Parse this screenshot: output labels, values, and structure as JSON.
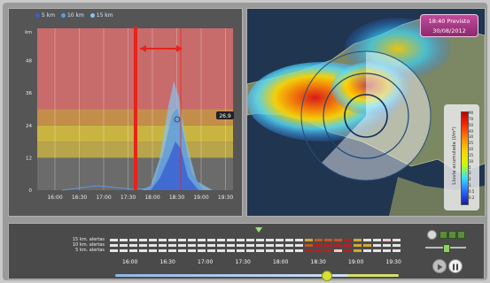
{
  "chart": {
    "legend": [
      {
        "label": "5 km",
        "color": "#3a5fd0"
      },
      {
        "label": "10 km",
        "color": "#5c9ae0"
      },
      {
        "label": "15 km",
        "color": "#86c3ee"
      }
    ],
    "y_unit": "km",
    "y_ticks": [
      "0",
      "12",
      "24",
      "36",
      "48"
    ],
    "x_ticks": [
      "16:00",
      "16:30",
      "17:00",
      "17:30",
      "18:00",
      "18:30",
      "19:00",
      "19:30"
    ],
    "value_label": "26.9",
    "bands": [
      {
        "from": 0,
        "to": 12,
        "color": "#6b6b6b"
      },
      {
        "from": 12,
        "to": 18,
        "color": "#b8a44a"
      },
      {
        "from": 18,
        "to": 24,
        "color": "#c9b441"
      },
      {
        "from": 24,
        "to": 30,
        "color": "#c38e4a"
      },
      {
        "from": 30,
        "to": 60,
        "color": "#c86b6b"
      }
    ]
  },
  "map": {
    "time_badge_line1": "18:40 Previsto",
    "time_badge_line2": "30/08/2012",
    "scale_title": "Lluvia acumulada (l/m²)",
    "scale_ticks": [
      "90",
      "70",
      "50",
      "40",
      "30",
      "25",
      "20",
      "15",
      "10",
      "5",
      "3",
      "2",
      "1",
      "0.5",
      "0.2"
    ]
  },
  "timeline": {
    "rows": [
      {
        "label": "15 km. alertas",
        "levels": [
          0,
          0,
          0,
          0,
          0,
          0,
          0,
          0,
          0,
          0,
          0,
          0,
          0,
          0,
          0,
          0,
          0,
          0,
          0,
          0,
          1,
          2,
          2,
          2,
          3,
          1,
          0,
          0,
          4,
          0
        ]
      },
      {
        "label": "10 km. alertas",
        "levels": [
          0,
          0,
          0,
          0,
          0,
          0,
          0,
          0,
          0,
          0,
          0,
          0,
          0,
          0,
          0,
          0,
          0,
          0,
          0,
          0,
          2,
          3,
          3,
          3,
          3,
          1,
          1,
          0,
          0,
          0
        ]
      },
      {
        "label": "5 km. alertas",
        "levels": [
          0,
          0,
          0,
          0,
          0,
          0,
          0,
          0,
          0,
          0,
          0,
          0,
          0,
          0,
          0,
          0,
          0,
          0,
          0,
          0,
          3,
          3,
          3,
          4,
          3,
          1,
          0,
          0,
          0,
          0
        ]
      }
    ],
    "level_colors": [
      "#e4e4e4",
      "#d1a93a",
      "#c9561e",
      "#b52020",
      "#f0c8c8"
    ],
    "times": [
      "16:00",
      "16:30",
      "17:00",
      "17:30",
      "18:00",
      "18:30",
      "19:00",
      "19:30"
    ],
    "progress": 0.76
  }
}
